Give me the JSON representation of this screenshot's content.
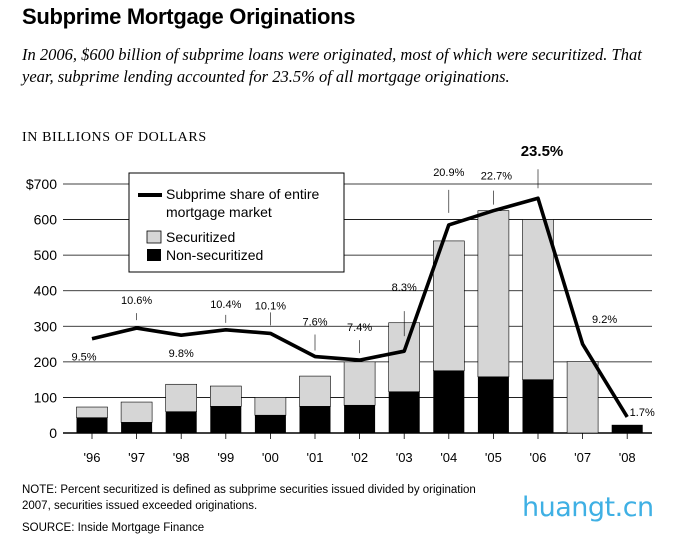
{
  "header": {
    "title": "Subprime Mortgage Originations",
    "subtitle": "In 2006, $600 billion of subprime loans were originated, most of which were securitized. That year, subprime lending accounted for 23.5% of all mortgage originations.",
    "unit_label": "IN BILLIONS OF DOLLARS"
  },
  "footer": {
    "note_line1": "NOTE: Percent securitized is defined as subprime securities issued divided by origination",
    "note_line2": "2007, securities issued exceeded originations.",
    "source": "SOURCE: Inside Mortgage Finance"
  },
  "watermark": "huangt.cn",
  "colors": {
    "securitized": "#d6d6d6",
    "non_securitized": "#000000",
    "line": "#000000",
    "gridline": "#000000",
    "watermark": "#1ea3e0"
  },
  "chart_data": {
    "type": "bar",
    "stacked": true,
    "categories": [
      "'96",
      "'97",
      "'98",
      "'99",
      "'00",
      "'01",
      "'02",
      "'03",
      "'04",
      "'05",
      "'06",
      "'07",
      "'08"
    ],
    "y_tick_labels": [
      "0",
      "100",
      "200",
      "300",
      "400",
      "500",
      "600",
      "$700"
    ],
    "ylim": [
      0,
      700
    ],
    "grid": true,
    "legend": {
      "position": "top-left",
      "line_label_1": "Subprime share of entire",
      "line_label_2": "mortgage market",
      "securitized_label": "Securitized",
      "non_securitized_label": "Non-securitized"
    },
    "series": [
      {
        "name": "Non-securitized",
        "values": [
          43,
          30,
          60,
          75,
          50,
          75,
          78,
          116,
          175,
          158,
          150,
          0,
          23
        ]
      },
      {
        "name": "Securitized",
        "values": [
          30,
          57,
          77,
          57,
          50,
          85,
          122,
          194,
          365,
          467,
          450,
          201,
          0
        ]
      }
    ],
    "share_line": {
      "name": "Subprime share of entire mortgage market",
      "values": [
        265,
        295,
        275,
        290,
        280,
        215,
        205,
        230,
        585,
        625,
        660,
        250,
        45
      ],
      "labels": [
        "9.5%",
        "10.6%",
        "9.8%",
        "10.4%",
        "10.1%",
        "7.6%",
        "7.4%",
        "8.3%",
        "20.9%",
        "22.7%",
        "23.5%",
        "9.2%",
        "1.7%"
      ]
    }
  }
}
